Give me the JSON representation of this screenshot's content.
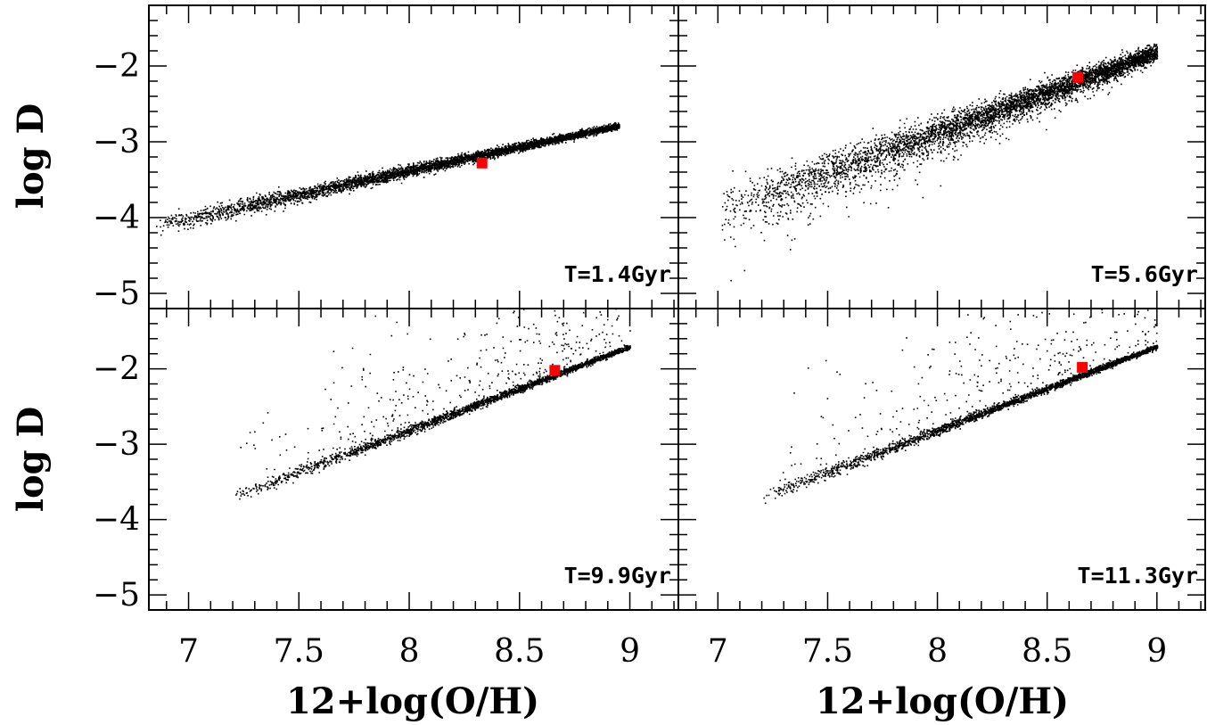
{
  "chart_data": {
    "type": "scatter",
    "layout": "2x2 panels with shared axes",
    "xlabel": "12+log(O/H)",
    "ylabel": "log D",
    "xlim": [
      6.82,
      9.22
    ],
    "ylim": [
      -5.2,
      -1.2
    ],
    "xticks": [
      7,
      7.5,
      8,
      8.5,
      9
    ],
    "xtick_labels": [
      "7",
      "7.5",
      "8",
      "8.5",
      "9"
    ],
    "yticks": [
      -2,
      -3,
      -4,
      -5
    ],
    "ytick_labels": [
      "−2",
      "−3",
      "−4",
      "−5"
    ],
    "point_color": "#000000",
    "marker_color": "#ff0000",
    "panels": [
      {
        "label": "T=1.4Gyr",
        "marker": {
          "x": 8.33,
          "y": -3.28
        },
        "scatter": {
          "points": 5000,
          "x_range": [
            6.85,
            8.95
          ],
          "y_at_x_min": -4.1,
          "y_at_x_max": -2.78,
          "spread": 0.04
        }
      },
      {
        "label": "T=5.6Gyr",
        "marker": {
          "x": 8.64,
          "y": -2.15
        },
        "scatter": {
          "points": 5000,
          "x_range": [
            7.0,
            9.0
          ],
          "y_at_x_min": -3.9,
          "y_at_x_max": -1.8,
          "spread": 0.1,
          "low_tail": -0.5
        }
      },
      {
        "label": "T=9.9Gyr",
        "marker": {
          "x": 8.66,
          "y": -2.02
        },
        "scatter": {
          "points": 3000,
          "x_range": [
            7.2,
            9.0
          ],
          "y_at_x_min": -3.7,
          "y_at_x_max": -1.7,
          "spread": 0.03,
          "scattered_high": 0.6
        }
      },
      {
        "label": "T=11.3Gyr",
        "marker": {
          "x": 8.66,
          "y": -1.98
        },
        "scatter": {
          "points": 3000,
          "x_range": [
            7.2,
            9.0
          ],
          "y_at_x_min": -3.7,
          "y_at_x_max": -1.7,
          "spread": 0.03,
          "scattered_high": 0.7
        }
      }
    ]
  }
}
